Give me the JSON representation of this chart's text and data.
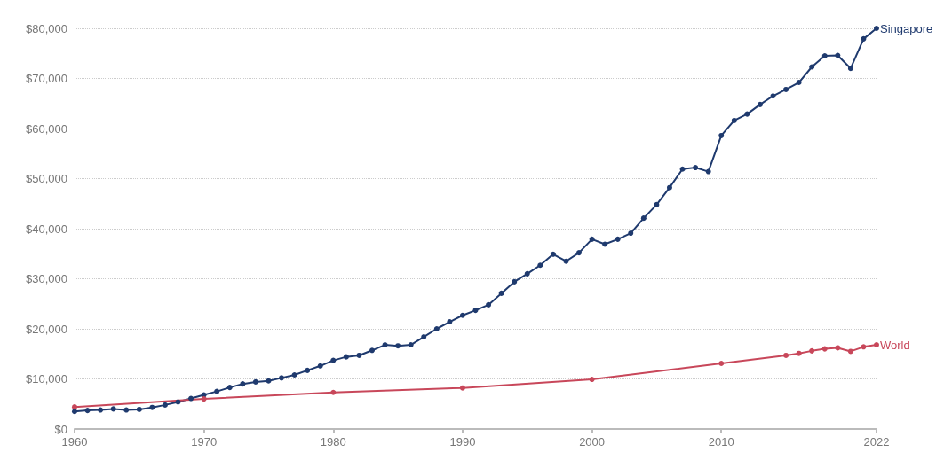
{
  "chart_data": {
    "type": "line",
    "xlim": [
      1960,
      2022
    ],
    "xticks": [
      1960,
      1970,
      1980,
      1990,
      2000,
      2010,
      2022
    ],
    "ylim": [
      0,
      80000
    ],
    "yticks": [
      {
        "value": 0,
        "label": "$0"
      },
      {
        "value": 10000,
        "label": "$10,000"
      },
      {
        "value": 20000,
        "label": "$20,000"
      },
      {
        "value": 30000,
        "label": "$30,000"
      },
      {
        "value": 40000,
        "label": "$40,000"
      },
      {
        "value": 50000,
        "label": "$50,000"
      },
      {
        "value": 60000,
        "label": "$60,000"
      },
      {
        "value": 70000,
        "label": "$70,000"
      },
      {
        "value": 80000,
        "label": "$80,000"
      }
    ],
    "grid": "y",
    "legend": false,
    "marker": "circle",
    "line_style": "solid",
    "series": [
      {
        "name": "Singapore",
        "color": "#1f3a6e",
        "x": [
          1960,
          1961,
          1962,
          1963,
          1964,
          1965,
          1966,
          1967,
          1968,
          1969,
          1970,
          1971,
          1972,
          1973,
          1974,
          1975,
          1976,
          1977,
          1978,
          1979,
          1980,
          1981,
          1982,
          1983,
          1984,
          1985,
          1986,
          1987,
          1988,
          1989,
          1990,
          1991,
          1992,
          1993,
          1994,
          1995,
          1996,
          1997,
          1998,
          1999,
          2000,
          2001,
          2002,
          2003,
          2004,
          2005,
          2006,
          2007,
          2008,
          2009,
          2010,
          2011,
          2012,
          2013,
          2014,
          2015,
          2016,
          2017,
          2018,
          2019,
          2020,
          2021,
          2022
        ],
        "values": [
          3500,
          3700,
          3800,
          4000,
          3800,
          3900,
          4300,
          4800,
          5400,
          6100,
          6800,
          7500,
          8300,
          9000,
          9400,
          9600,
          10200,
          10800,
          11700,
          12600,
          13700,
          14400,
          14700,
          15700,
          16800,
          16600,
          16800,
          18400,
          20000,
          21400,
          22700,
          23700,
          24800,
          27100,
          29400,
          31000,
          32700,
          34900,
          33500,
          35200,
          37900,
          36900,
          37900,
          39100,
          42100,
          44800,
          48200,
          51900,
          52200,
          51400,
          58600,
          61600,
          62900,
          64800,
          66500,
          67800,
          69200,
          72300,
          74500,
          74600,
          72000,
          77900,
          80000
        ]
      },
      {
        "name": "World",
        "color": "#c8475a",
        "x": [
          1960,
          1970,
          1980,
          1990,
          2000,
          2010,
          2015,
          2016,
          2017,
          2018,
          2019,
          2020,
          2021,
          2022
        ],
        "values": [
          4400,
          6000,
          7300,
          8200,
          9900,
          13100,
          14700,
          15100,
          15600,
          16000,
          16200,
          15500,
          16400,
          16800
        ]
      }
    ]
  }
}
